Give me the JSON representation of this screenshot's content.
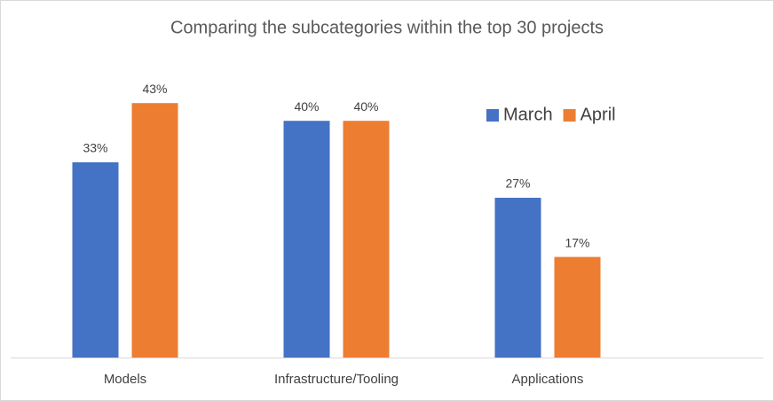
{
  "chart_data": {
    "type": "bar",
    "title": "Comparing the subcategories within the top 30 projects",
    "categories": [
      "Models",
      "Infrastructure/Tooling",
      "Applications"
    ],
    "series": [
      {
        "name": "March",
        "color": "#4472c4",
        "values": [
          33,
          40,
          27
        ],
        "value_labels": [
          "33%",
          "40%",
          "27%"
        ]
      },
      {
        "name": "April",
        "color": "#ed7d31",
        "values": [
          43,
          40,
          17
        ],
        "value_labels": [
          "43%",
          "40%",
          "17%"
        ]
      }
    ],
    "legend": "top-right"
  }
}
